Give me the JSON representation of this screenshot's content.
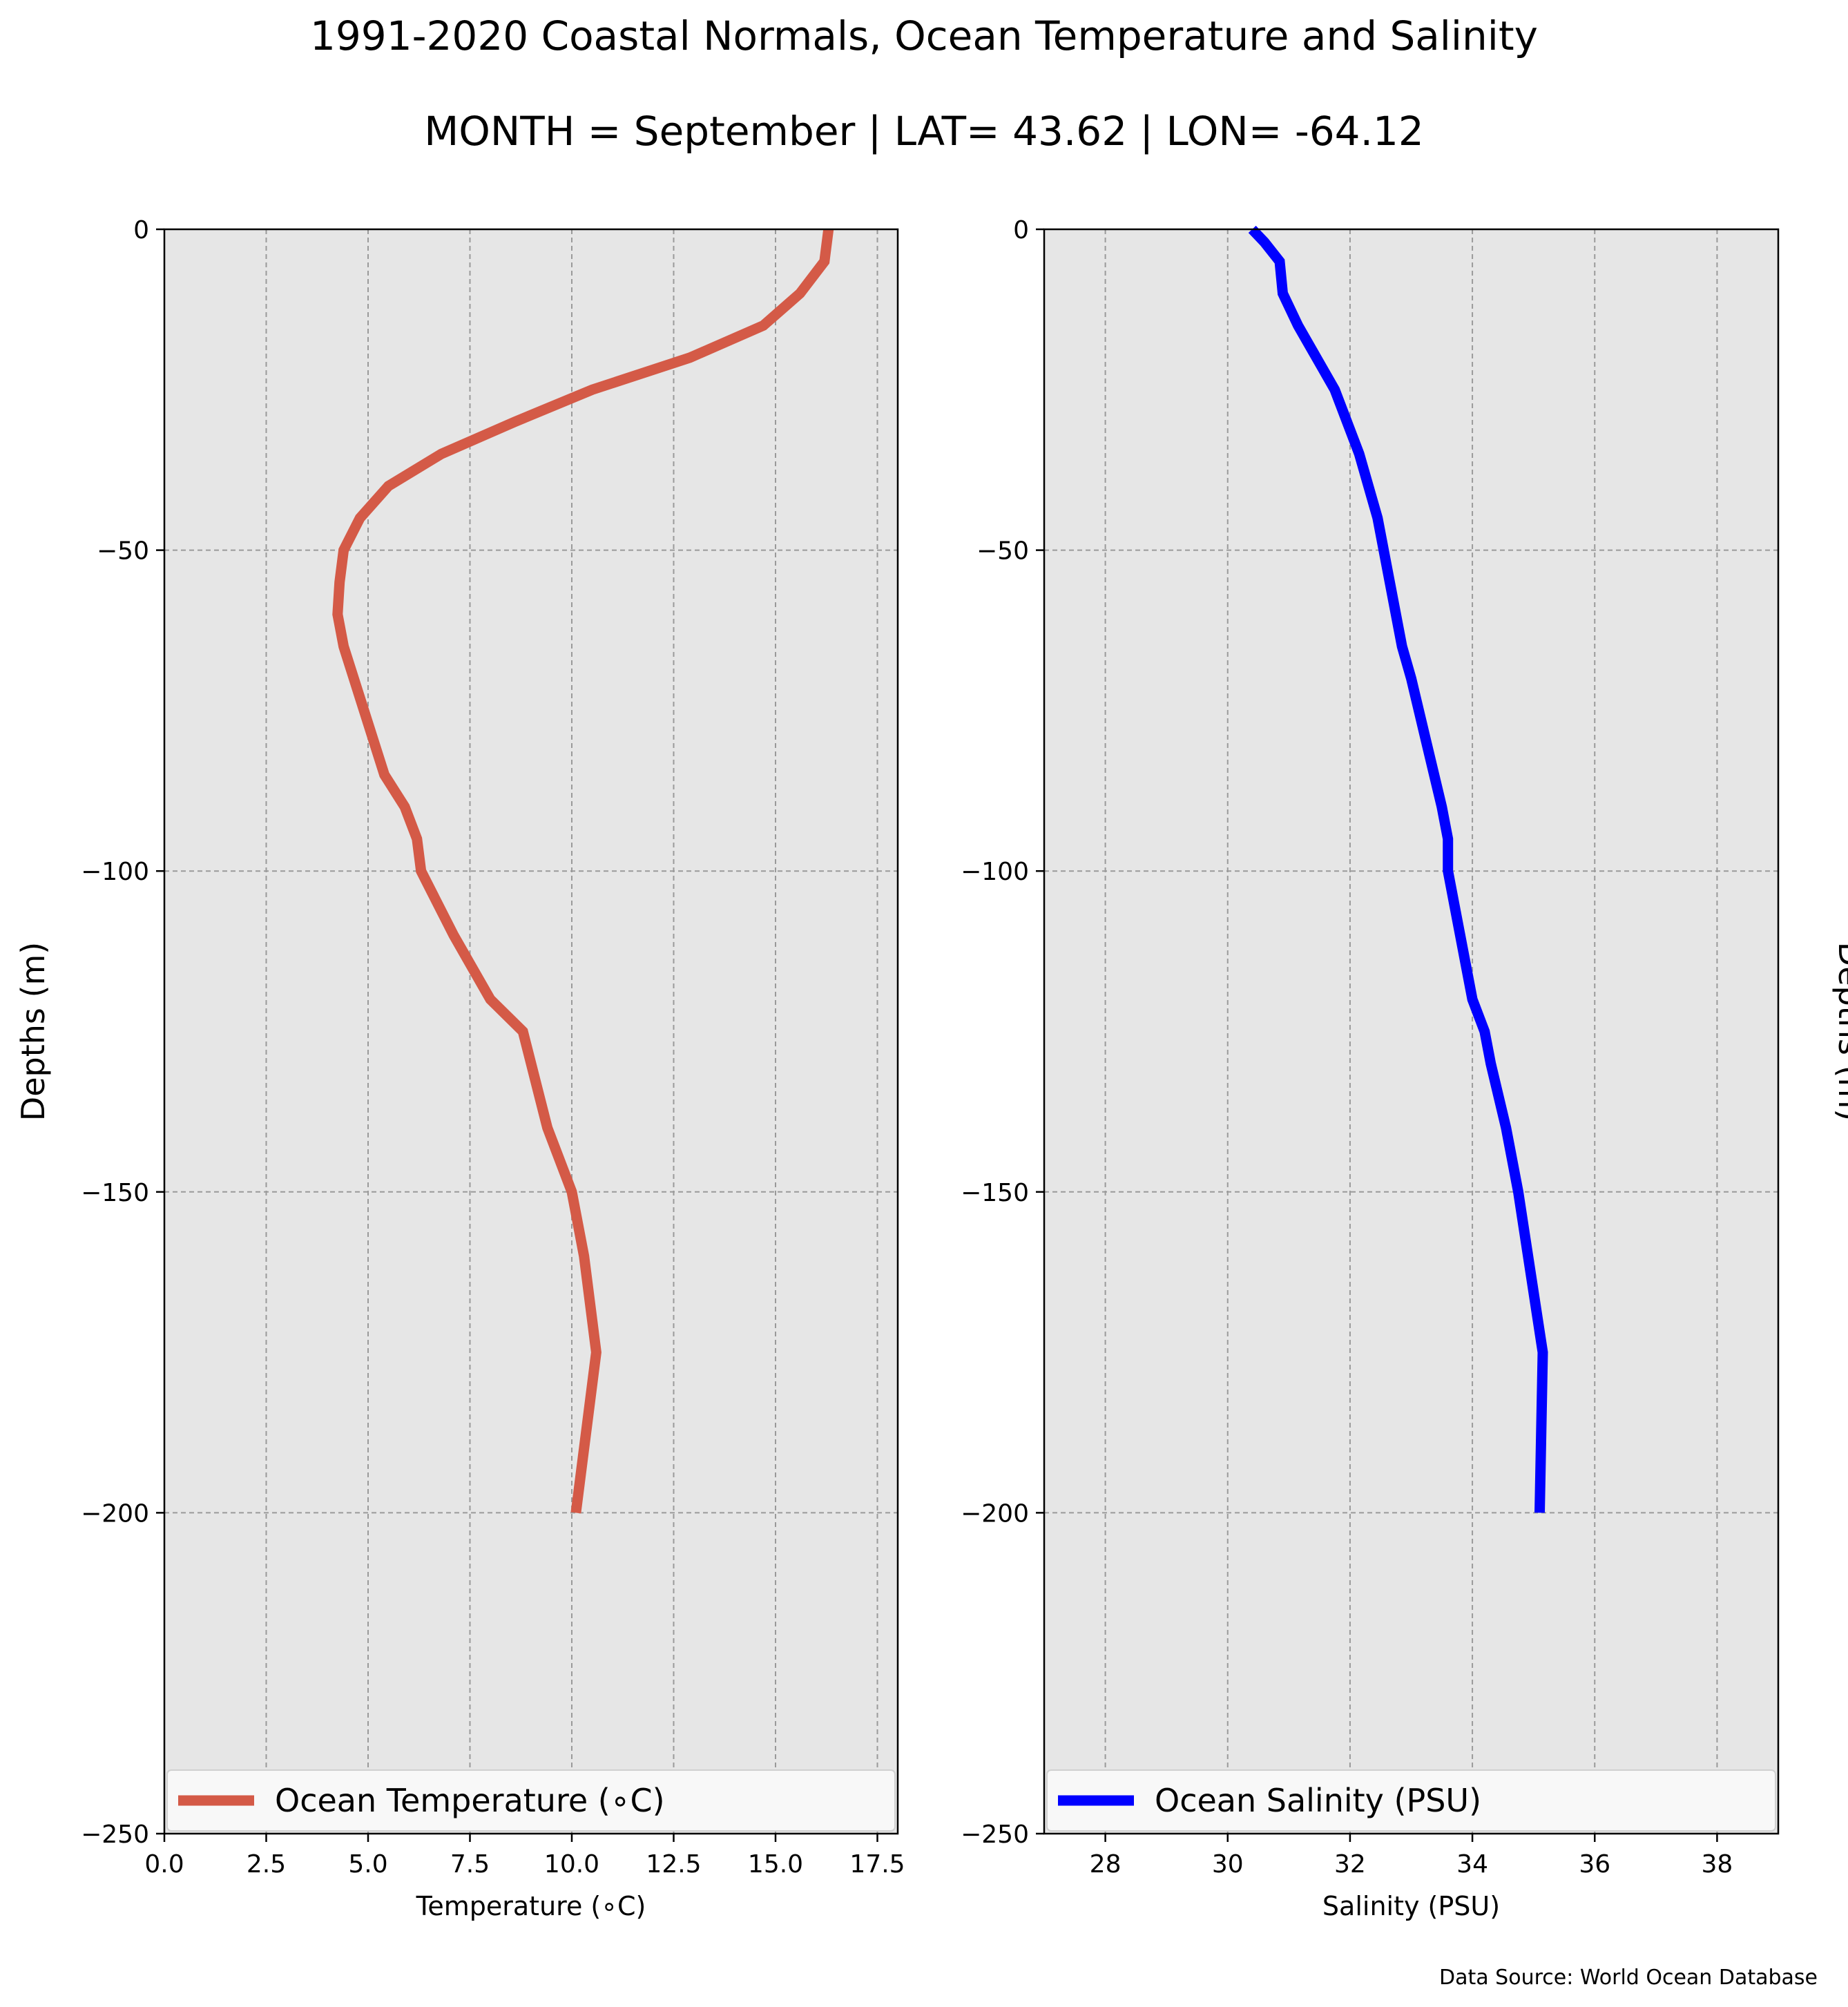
{
  "title": "1991-2020 Coastal Normals, Ocean Temperature and Salinity",
  "subtitle": "MONTH = September | LAT= 43.62 | LON= -64.12",
  "source": "Data Source: World Ocean Database",
  "colors": {
    "temperature_line": "#d45a47",
    "salinity_line": "#0000ff",
    "axes_background": "#e6e6e6",
    "grid": "#9a9a9a",
    "legend_background": "#f8f8f8"
  },
  "chart_data": [
    {
      "type": "line",
      "xlabel": "Temperature (∘C)",
      "ylabel": "Depths (m)",
      "ylabel_side": "left",
      "xlim": [
        0,
        18
      ],
      "ylim": [
        -250,
        0
      ],
      "xticks": [
        0.0,
        2.5,
        5.0,
        7.5,
        10.0,
        12.5,
        15.0,
        17.5
      ],
      "xtick_labels": [
        "0.0",
        "2.5",
        "5.0",
        "7.5",
        "10.0",
        "12.5",
        "15.0",
        "17.5"
      ],
      "yticks": [
        0,
        -50,
        -100,
        -150,
        -200,
        -250
      ],
      "ytick_labels": [
        "0",
        "−50",
        "−100",
        "−150",
        "−200",
        "−250"
      ],
      "grid": true,
      "legend": "bottom",
      "series": [
        {
          "name": "Ocean Temperature (∘C)",
          "color": "#d45a47",
          "x": [
            16.3,
            16.2,
            15.6,
            14.7,
            12.9,
            10.5,
            8.6,
            6.8,
            5.5,
            4.8,
            4.4,
            4.3,
            4.25,
            4.4,
            4.9,
            5.4,
            5.9,
            6.2,
            6.3,
            7.1,
            8.0,
            8.8,
            9.4,
            10.0,
            10.3,
            10.6,
            10.1
          ],
          "y": [
            0,
            -5,
            -10,
            -15,
            -20,
            -25,
            -30,
            -35,
            -40,
            -45,
            -50,
            -55,
            -60,
            -65,
            -75,
            -85,
            -90,
            -95,
            -100,
            -110,
            -120,
            -125,
            -140,
            -150,
            -160,
            -175,
            -200
          ]
        }
      ]
    },
    {
      "type": "line",
      "xlabel": "Salinity (PSU)",
      "ylabel": "Depths (m)",
      "ylabel_side": "right",
      "xlim": [
        27,
        39
      ],
      "ylim": [
        -250,
        0
      ],
      "xticks": [
        28,
        30,
        32,
        34,
        36,
        38
      ],
      "xtick_labels": [
        "28",
        "30",
        "32",
        "34",
        "36",
        "38"
      ],
      "yticks": [
        0,
        -50,
        -100,
        -150,
        -200,
        -250
      ],
      "ytick_labels": [
        "0",
        "−50",
        "−100",
        "−150",
        "−200",
        "−250"
      ],
      "grid": true,
      "legend": "bottom",
      "series": [
        {
          "name": "Ocean Salinity (PSU)",
          "color": "#0000ff",
          "x": [
            30.4,
            30.6,
            30.85,
            30.9,
            31.15,
            31.45,
            31.75,
            31.95,
            32.15,
            32.45,
            32.65,
            32.85,
            33.0,
            33.25,
            33.5,
            33.6,
            33.6,
            33.8,
            34.0,
            34.2,
            34.3,
            34.55,
            34.75,
            35.15,
            35.1
          ],
          "y": [
            0,
            -2,
            -5,
            -10,
            -15,
            -20,
            -25,
            -30,
            -35,
            -45,
            -55,
            -65,
            -70,
            -80,
            -90,
            -95,
            -100,
            -110,
            -120,
            -125,
            -130,
            -140,
            -150,
            -175,
            -200
          ]
        }
      ]
    }
  ]
}
